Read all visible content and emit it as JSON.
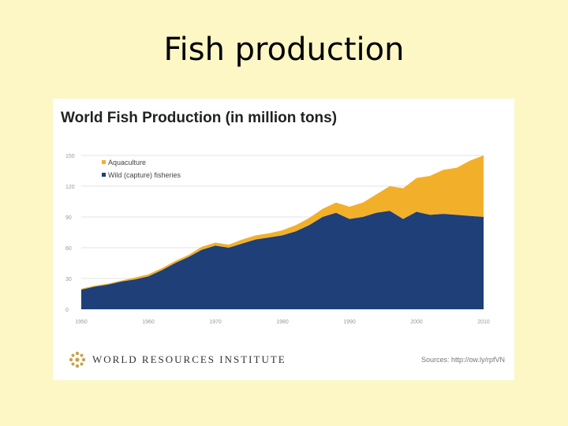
{
  "slide": {
    "title": "Fish production"
  },
  "footer": {
    "org": "WORLD RESOURCES INSTITUTE",
    "source": "Sources: http://ow.ly/rpfVN"
  },
  "colors": {
    "aquaculture": "#f2b02a",
    "wild": "#1e3f78",
    "background": "#fcf7c5"
  },
  "chart_data": {
    "type": "area",
    "title": "World Fish Production (in million tons)",
    "xlim": [
      1950,
      2010
    ],
    "ylim": [
      0,
      150
    ],
    "xticks": [
      1950,
      1960,
      1970,
      1980,
      1990,
      2000,
      2010
    ],
    "yticks": [
      0,
      30,
      60,
      90,
      120,
      150
    ],
    "legend_position": "top-left",
    "stacked": true,
    "x": [
      1950,
      1952,
      1954,
      1956,
      1958,
      1960,
      1962,
      1964,
      1966,
      1968,
      1970,
      1972,
      1974,
      1976,
      1978,
      1980,
      1982,
      1984,
      1986,
      1988,
      1990,
      1992,
      1994,
      1996,
      1998,
      2000,
      2002,
      2004,
      2006,
      2008,
      2010
    ],
    "series": [
      {
        "name": "Wild (capture) fisheries",
        "values": [
          19,
          22,
          24,
          27,
          29,
          32,
          38,
          45,
          51,
          58,
          62,
          60,
          64,
          68,
          70,
          72,
          76,
          82,
          90,
          94,
          88,
          90,
          94,
          96,
          88,
          95,
          92,
          93,
          92,
          91,
          90
        ]
      },
      {
        "name": "Aquaculture",
        "values": [
          1,
          1,
          1,
          1,
          2,
          2,
          2,
          2,
          2,
          3,
          3,
          3,
          4,
          4,
          4,
          5,
          6,
          7,
          8,
          10,
          12,
          14,
          18,
          24,
          30,
          33,
          38,
          43,
          46,
          54,
          60
        ]
      }
    ]
  }
}
